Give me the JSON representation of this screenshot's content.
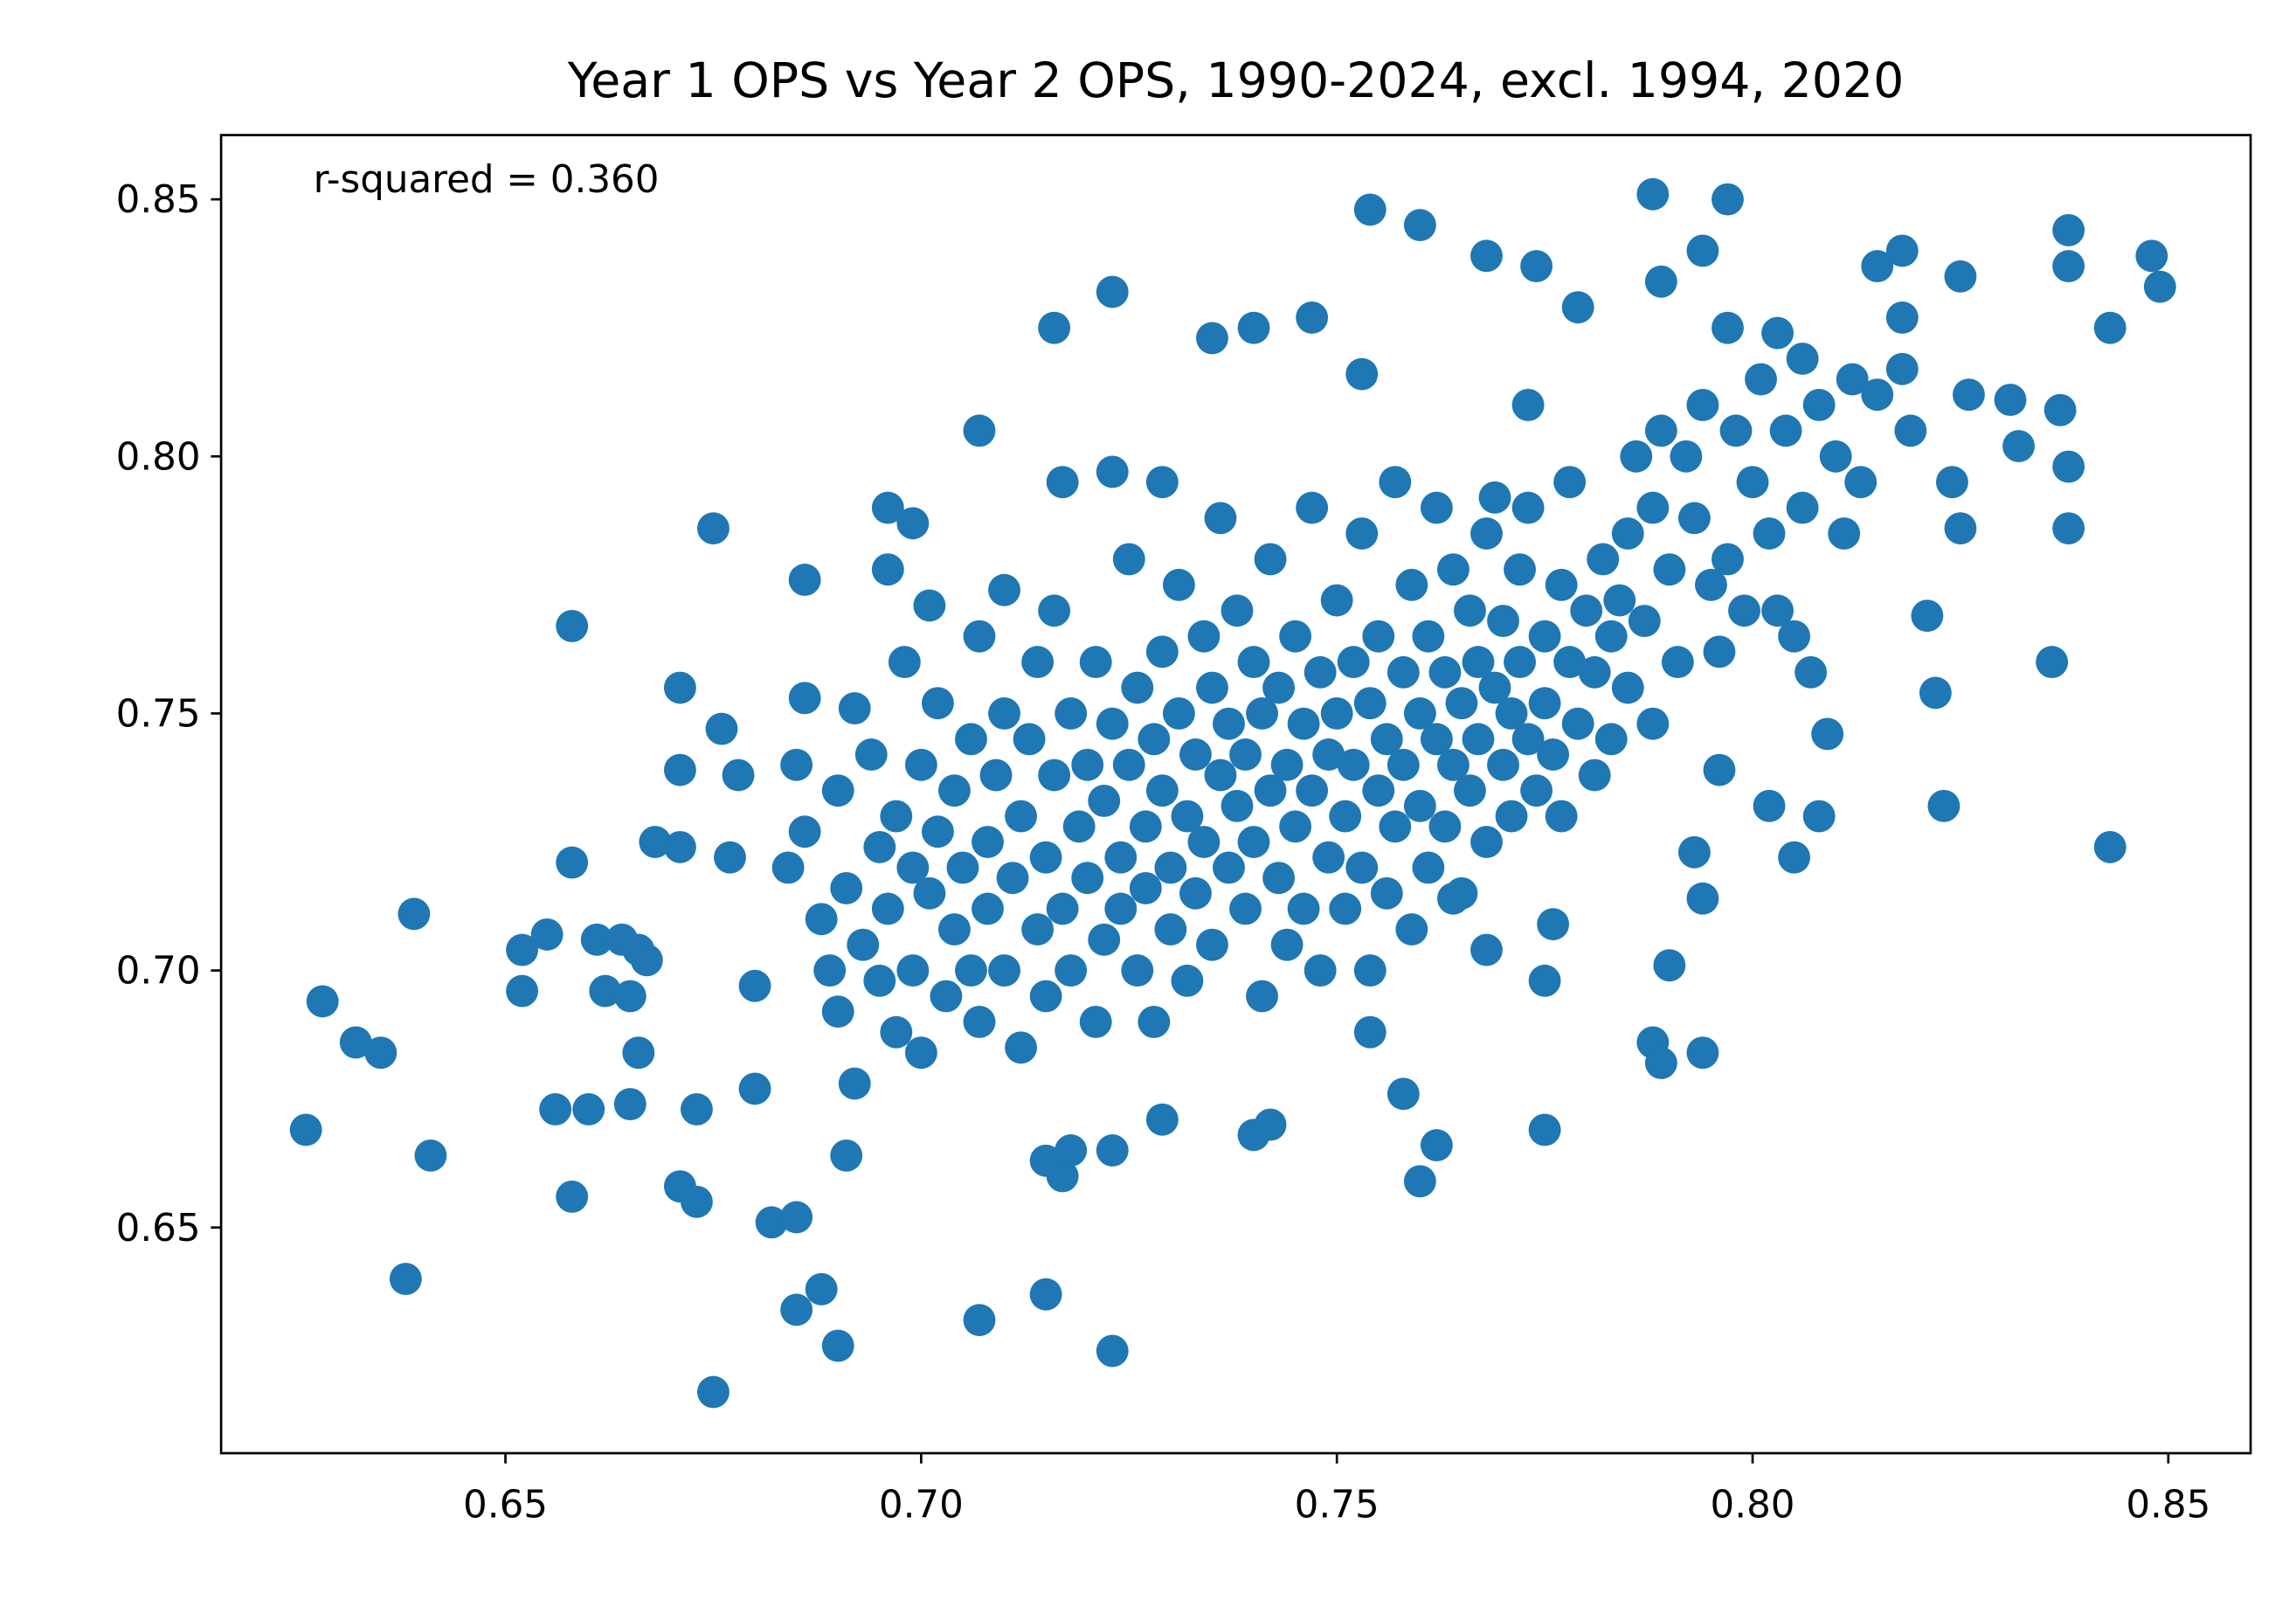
{
  "chart_data": {
    "type": "scatter",
    "title": "Year 1 OPS vs Year 2 OPS, 1990-2024, excl. 1994, 2020",
    "annotation": "r-squared = 0.360",
    "xlabel": "",
    "ylabel": "",
    "xlim": [
      0.6158,
      0.8599
    ],
    "ylim": [
      0.6061,
      0.8625
    ],
    "xticks": [
      "0.65",
      "0.70",
      "0.75",
      "0.80",
      "0.85"
    ],
    "yticks": [
      "0.65",
      "0.70",
      "0.75",
      "0.80",
      "0.85"
    ],
    "grid": false,
    "marker_color": "#1f77b4",
    "points": [
      [
        0.626,
        0.669
      ],
      [
        0.628,
        0.694
      ],
      [
        0.632,
        0.686
      ],
      [
        0.635,
        0.684
      ],
      [
        0.639,
        0.711
      ],
      [
        0.641,
        0.664
      ],
      [
        0.638,
        0.64
      ],
      [
        0.652,
        0.704
      ],
      [
        0.652,
        0.696
      ],
      [
        0.655,
        0.707
      ],
      [
        0.656,
        0.673
      ],
      [
        0.658,
        0.656
      ],
      [
        0.658,
        0.767
      ],
      [
        0.658,
        0.721
      ],
      [
        0.66,
        0.673
      ],
      [
        0.661,
        0.706
      ],
      [
        0.662,
        0.696
      ],
      [
        0.664,
        0.706
      ],
      [
        0.665,
        0.695
      ],
      [
        0.665,
        0.674
      ],
      [
        0.666,
        0.684
      ],
      [
        0.666,
        0.704
      ],
      [
        0.667,
        0.702
      ],
      [
        0.668,
        0.725
      ],
      [
        0.671,
        0.755
      ],
      [
        0.671,
        0.724
      ],
      [
        0.671,
        0.739
      ],
      [
        0.671,
        0.658
      ],
      [
        0.673,
        0.655
      ],
      [
        0.673,
        0.673
      ],
      [
        0.675,
        0.618
      ],
      [
        0.675,
        0.786
      ],
      [
        0.676,
        0.747
      ],
      [
        0.677,
        0.722
      ],
      [
        0.678,
        0.738
      ],
      [
        0.68,
        0.697
      ],
      [
        0.68,
        0.677
      ],
      [
        0.682,
        0.651
      ],
      [
        0.685,
        0.652
      ],
      [
        0.685,
        0.74
      ],
      [
        0.685,
        0.634
      ],
      [
        0.686,
        0.776
      ],
      [
        0.686,
        0.753
      ],
      [
        0.688,
        0.638
      ],
      [
        0.69,
        0.627
      ],
      [
        0.691,
        0.664
      ],
      [
        0.692,
        0.751
      ],
      [
        0.695,
        0.724
      ],
      [
        0.696,
        0.79
      ],
      [
        0.696,
        0.778
      ],
      [
        0.699,
        0.787
      ],
      [
        0.701,
        0.771
      ],
      [
        0.707,
        0.805
      ],
      [
        0.707,
        0.632
      ],
      [
        0.71,
        0.774
      ],
      [
        0.715,
        0.637
      ],
      [
        0.715,
        0.663
      ],
      [
        0.716,
        0.825
      ],
      [
        0.717,
        0.795
      ],
      [
        0.717,
        0.66
      ],
      [
        0.718,
        0.665
      ],
      [
        0.723,
        0.832
      ],
      [
        0.723,
        0.626
      ],
      [
        0.723,
        0.665
      ],
      [
        0.723,
        0.797
      ],
      [
        0.729,
        0.671
      ],
      [
        0.729,
        0.795
      ],
      [
        0.735,
        0.823
      ],
      [
        0.74,
        0.825
      ],
      [
        0.74,
        0.668
      ],
      [
        0.742,
        0.67
      ],
      [
        0.747,
        0.827
      ],
      [
        0.754,
        0.848
      ],
      [
        0.753,
        0.816
      ],
      [
        0.76,
        0.845
      ],
      [
        0.754,
        0.688
      ],
      [
        0.758,
        0.676
      ],
      [
        0.76,
        0.659
      ],
      [
        0.762,
        0.666
      ],
      [
        0.764,
        0.714
      ],
      [
        0.768,
        0.839
      ],
      [
        0.768,
        0.704
      ],
      [
        0.773,
        0.81
      ],
      [
        0.774,
        0.837
      ],
      [
        0.775,
        0.669
      ],
      [
        0.775,
        0.698
      ],
      [
        0.776,
        0.709
      ],
      [
        0.779,
        0.829
      ],
      [
        0.788,
        0.851
      ],
      [
        0.788,
        0.686
      ],
      [
        0.789,
        0.682
      ],
      [
        0.789,
        0.834
      ],
      [
        0.79,
        0.701
      ],
      [
        0.793,
        0.723
      ],
      [
        0.794,
        0.714
      ],
      [
        0.794,
        0.684
      ],
      [
        0.794,
        0.84
      ],
      [
        0.797,
        0.85
      ],
      [
        0.797,
        0.825
      ],
      [
        0.796,
        0.739
      ],
      [
        0.803,
        0.824
      ],
      [
        0.806,
        0.819
      ],
      [
        0.802,
        0.732
      ],
      [
        0.805,
        0.722
      ],
      [
        0.808,
        0.73
      ],
      [
        0.809,
        0.746
      ],
      [
        0.815,
        0.837
      ],
      [
        0.818,
        0.84
      ],
      [
        0.818,
        0.817
      ],
      [
        0.818,
        0.827
      ],
      [
        0.819,
        0.805
      ],
      [
        0.821,
        0.769
      ],
      [
        0.822,
        0.754
      ],
      [
        0.823,
        0.732
      ],
      [
        0.824,
        0.795
      ],
      [
        0.825,
        0.786
      ],
      [
        0.825,
        0.835
      ],
      [
        0.826,
        0.812
      ],
      [
        0.831,
        0.811
      ],
      [
        0.832,
        0.802
      ],
      [
        0.836,
        0.76
      ],
      [
        0.837,
        0.809
      ],
      [
        0.838,
        0.798
      ],
      [
        0.838,
        0.844
      ],
      [
        0.838,
        0.837
      ],
      [
        0.838,
        0.786
      ],
      [
        0.843,
        0.825
      ],
      [
        0.843,
        0.724
      ],
      [
        0.848,
        0.839
      ],
      [
        0.849,
        0.833
      ],
      [
        0.684,
        0.72
      ],
      [
        0.686,
        0.727
      ],
      [
        0.688,
        0.71
      ],
      [
        0.689,
        0.7
      ],
      [
        0.69,
        0.735
      ],
      [
        0.69,
        0.692
      ],
      [
        0.691,
        0.716
      ],
      [
        0.692,
        0.678
      ],
      [
        0.693,
        0.705
      ],
      [
        0.694,
        0.742
      ],
      [
        0.695,
        0.698
      ],
      [
        0.696,
        0.712
      ],
      [
        0.697,
        0.73
      ],
      [
        0.697,
        0.688
      ],
      [
        0.698,
        0.76
      ],
      [
        0.699,
        0.72
      ],
      [
        0.699,
        0.7
      ],
      [
        0.7,
        0.74
      ],
      [
        0.7,
        0.684
      ],
      [
        0.701,
        0.715
      ],
      [
        0.702,
        0.752
      ],
      [
        0.702,
        0.727
      ],
      [
        0.703,
        0.695
      ],
      [
        0.704,
        0.708
      ],
      [
        0.704,
        0.735
      ],
      [
        0.705,
        0.72
      ],
      [
        0.706,
        0.745
      ],
      [
        0.706,
        0.7
      ],
      [
        0.707,
        0.765
      ],
      [
        0.707,
        0.69
      ],
      [
        0.708,
        0.725
      ],
      [
        0.708,
        0.712
      ],
      [
        0.709,
        0.738
      ],
      [
        0.71,
        0.7
      ],
      [
        0.71,
        0.75
      ],
      [
        0.711,
        0.718
      ],
      [
        0.712,
        0.685
      ],
      [
        0.712,
        0.73
      ],
      [
        0.713,
        0.745
      ],
      [
        0.714,
        0.708
      ],
      [
        0.714,
        0.76
      ],
      [
        0.715,
        0.722
      ],
      [
        0.715,
        0.695
      ],
      [
        0.716,
        0.738
      ],
      [
        0.716,
        0.77
      ],
      [
        0.717,
        0.712
      ],
      [
        0.718,
        0.75
      ],
      [
        0.718,
        0.7
      ],
      [
        0.719,
        0.728
      ],
      [
        0.72,
        0.74
      ],
      [
        0.72,
        0.718
      ],
      [
        0.721,
        0.69
      ],
      [
        0.721,
        0.76
      ],
      [
        0.722,
        0.706
      ],
      [
        0.722,
        0.733
      ],
      [
        0.723,
        0.748
      ],
      [
        0.724,
        0.722
      ],
      [
        0.724,
        0.712
      ],
      [
        0.725,
        0.78
      ],
      [
        0.725,
        0.74
      ],
      [
        0.726,
        0.7
      ],
      [
        0.726,
        0.755
      ],
      [
        0.727,
        0.728
      ],
      [
        0.727,
        0.716
      ],
      [
        0.728,
        0.745
      ],
      [
        0.728,
        0.69
      ],
      [
        0.729,
        0.735
      ],
      [
        0.729,
        0.762
      ],
      [
        0.73,
        0.72
      ],
      [
        0.73,
        0.708
      ],
      [
        0.731,
        0.75
      ],
      [
        0.731,
        0.775
      ],
      [
        0.732,
        0.73
      ],
      [
        0.732,
        0.698
      ],
      [
        0.733,
        0.742
      ],
      [
        0.733,
        0.715
      ],
      [
        0.734,
        0.765
      ],
      [
        0.734,
        0.725
      ],
      [
        0.735,
        0.755
      ],
      [
        0.735,
        0.705
      ],
      [
        0.736,
        0.738
      ],
      [
        0.736,
        0.788
      ],
      [
        0.737,
        0.72
      ],
      [
        0.737,
        0.748
      ],
      [
        0.738,
        0.732
      ],
      [
        0.738,
        0.77
      ],
      [
        0.739,
        0.712
      ],
      [
        0.739,
        0.742
      ],
      [
        0.74,
        0.76
      ],
      [
        0.74,
        0.725
      ],
      [
        0.741,
        0.695
      ],
      [
        0.741,
        0.75
      ],
      [
        0.742,
        0.735
      ],
      [
        0.742,
        0.78
      ],
      [
        0.743,
        0.718
      ],
      [
        0.743,
        0.755
      ],
      [
        0.744,
        0.74
      ],
      [
        0.744,
        0.705
      ],
      [
        0.745,
        0.765
      ],
      [
        0.745,
        0.728
      ],
      [
        0.746,
        0.748
      ],
      [
        0.746,
        0.712
      ],
      [
        0.747,
        0.79
      ],
      [
        0.747,
        0.735
      ],
      [
        0.748,
        0.758
      ],
      [
        0.748,
        0.7
      ],
      [
        0.749,
        0.742
      ],
      [
        0.749,
        0.722
      ],
      [
        0.75,
        0.772
      ],
      [
        0.75,
        0.75
      ],
      [
        0.751,
        0.73
      ],
      [
        0.751,
        0.712
      ],
      [
        0.752,
        0.76
      ],
      [
        0.752,
        0.74
      ],
      [
        0.753,
        0.785
      ],
      [
        0.753,
        0.72
      ],
      [
        0.754,
        0.752
      ],
      [
        0.754,
        0.7
      ],
      [
        0.755,
        0.735
      ],
      [
        0.755,
        0.765
      ],
      [
        0.756,
        0.745
      ],
      [
        0.756,
        0.715
      ],
      [
        0.757,
        0.795
      ],
      [
        0.757,
        0.728
      ],
      [
        0.758,
        0.758
      ],
      [
        0.758,
        0.74
      ],
      [
        0.759,
        0.775
      ],
      [
        0.759,
        0.708
      ],
      [
        0.76,
        0.75
      ],
      [
        0.76,
        0.732
      ],
      [
        0.761,
        0.765
      ],
      [
        0.761,
        0.72
      ],
      [
        0.762,
        0.79
      ],
      [
        0.762,
        0.745
      ],
      [
        0.763,
        0.758
      ],
      [
        0.763,
        0.728
      ],
      [
        0.764,
        0.778
      ],
      [
        0.764,
        0.74
      ],
      [
        0.765,
        0.752
      ],
      [
        0.765,
        0.715
      ],
      [
        0.766,
        0.77
      ],
      [
        0.766,
        0.735
      ],
      [
        0.767,
        0.76
      ],
      [
        0.767,
        0.745
      ],
      [
        0.768,
        0.785
      ],
      [
        0.768,
        0.725
      ],
      [
        0.769,
        0.755
      ],
      [
        0.769,
        0.792
      ],
      [
        0.77,
        0.74
      ],
      [
        0.77,
        0.768
      ],
      [
        0.771,
        0.75
      ],
      [
        0.771,
        0.73
      ],
      [
        0.772,
        0.778
      ],
      [
        0.772,
        0.76
      ],
      [
        0.773,
        0.745
      ],
      [
        0.773,
        0.79
      ],
      [
        0.774,
        0.735
      ],
      [
        0.775,
        0.765
      ],
      [
        0.775,
        0.752
      ],
      [
        0.776,
        0.742
      ],
      [
        0.777,
        0.775
      ],
      [
        0.777,
        0.73
      ],
      [
        0.778,
        0.76
      ],
      [
        0.778,
        0.795
      ],
      [
        0.779,
        0.748
      ],
      [
        0.78,
        0.77
      ],
      [
        0.781,
        0.738
      ],
      [
        0.781,
        0.758
      ],
      [
        0.782,
        0.78
      ],
      [
        0.783,
        0.765
      ],
      [
        0.783,
        0.745
      ],
      [
        0.784,
        0.772
      ],
      [
        0.785,
        0.785
      ],
      [
        0.785,
        0.755
      ],
      [
        0.786,
        0.8
      ],
      [
        0.787,
        0.768
      ],
      [
        0.788,
        0.748
      ],
      [
        0.788,
        0.79
      ],
      [
        0.789,
        0.805
      ],
      [
        0.79,
        0.778
      ],
      [
        0.791,
        0.76
      ],
      [
        0.792,
        0.8
      ],
      [
        0.793,
        0.788
      ],
      [
        0.794,
        0.81
      ],
      [
        0.795,
        0.775
      ],
      [
        0.796,
        0.762
      ],
      [
        0.797,
        0.78
      ],
      [
        0.798,
        0.805
      ],
      [
        0.799,
        0.77
      ],
      [
        0.8,
        0.795
      ],
      [
        0.801,
        0.815
      ],
      [
        0.802,
        0.785
      ],
      [
        0.803,
        0.77
      ],
      [
        0.804,
        0.805
      ],
      [
        0.805,
        0.765
      ],
      [
        0.806,
        0.79
      ],
      [
        0.807,
        0.758
      ],
      [
        0.808,
        0.81
      ],
      [
        0.81,
        0.8
      ],
      [
        0.811,
        0.785
      ],
      [
        0.812,
        0.815
      ],
      [
        0.813,
        0.795
      ],
      [
        0.815,
        0.812
      ]
    ]
  }
}
